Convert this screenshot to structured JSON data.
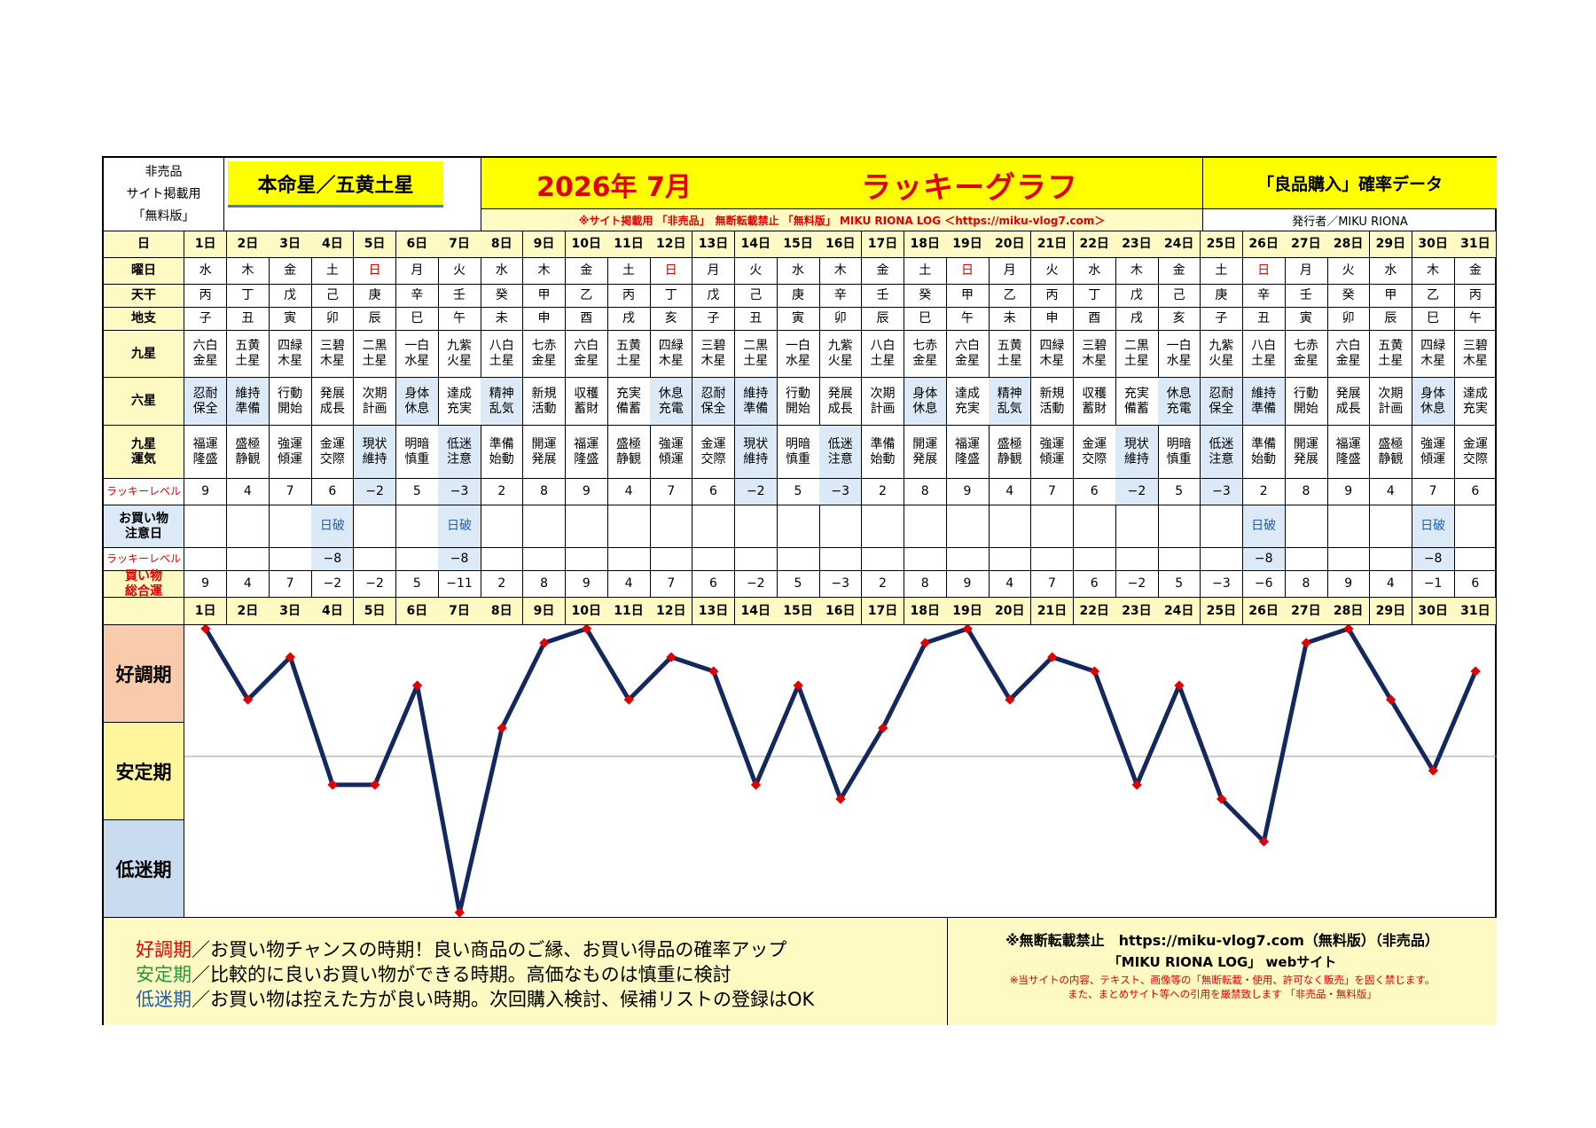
{
  "header": {
    "nonsale_lines": [
      "非売品",
      "サイト掲載用",
      "「無料版」"
    ],
    "honmei_star": "本命星／五黄土星",
    "month_title": "2026年 7月",
    "graph_title": "ラッキーグラフ",
    "data_title": "「良品購入」確率データ",
    "notice": "※サイト掲載用 「非売品」　無断転載禁止 「無料版」 MIKU RIONA LOG ＜https://miku-vlog7.com＞",
    "publisher": "発行者／MIKU RIONA"
  },
  "row_labels": {
    "day": "日",
    "weekday": "曜日",
    "tenkan": "天干",
    "chishi": "地支",
    "kyusei": "九星",
    "rokusei": "六星",
    "kyusei_unki": "九星\n運気",
    "lucky_level": "ラッキーレベル",
    "shopping_caution": "お買い物\n注意日",
    "lucky_level2": "ラッキーレベル",
    "shopping_total": "買い物\n総合運"
  },
  "days": [
    "1日",
    "2日",
    "3日",
    "4日",
    "5日",
    "6日",
    "7日",
    "8日",
    "9日",
    "10日",
    "11日",
    "12日",
    "13日",
    "14日",
    "15日",
    "16日",
    "17日",
    "18日",
    "19日",
    "20日",
    "21日",
    "22日",
    "23日",
    "24日",
    "25日",
    "26日",
    "27日",
    "28日",
    "29日",
    "30日",
    "31日"
  ],
  "weekdays": [
    "水",
    "木",
    "金",
    "土",
    "日",
    "月",
    "火",
    "水",
    "木",
    "金",
    "土",
    "日",
    "月",
    "火",
    "水",
    "木",
    "金",
    "土",
    "日",
    "月",
    "火",
    "水",
    "木",
    "金",
    "土",
    "日",
    "月",
    "火",
    "水",
    "木",
    "金"
  ],
  "tenkan": [
    "丙",
    "丁",
    "戊",
    "己",
    "庚",
    "辛",
    "壬",
    "癸",
    "甲",
    "乙",
    "丙",
    "丁",
    "戊",
    "己",
    "庚",
    "辛",
    "壬",
    "癸",
    "甲",
    "乙",
    "丙",
    "丁",
    "戊",
    "己",
    "庚",
    "辛",
    "壬",
    "癸",
    "甲",
    "乙",
    "丙"
  ],
  "chishi": [
    "子",
    "丑",
    "寅",
    "卯",
    "辰",
    "巳",
    "午",
    "未",
    "申",
    "酉",
    "戌",
    "亥",
    "子",
    "丑",
    "寅",
    "卯",
    "辰",
    "巳",
    "午",
    "未",
    "申",
    "酉",
    "戌",
    "亥",
    "子",
    "丑",
    "寅",
    "卯",
    "辰",
    "巳",
    "午"
  ],
  "kyusei": [
    "六白\n金星",
    "五黄\n土星",
    "四緑\n木星",
    "三碧\n木星",
    "二黒\n土星",
    "一白\n水星",
    "九紫\n火星",
    "八白\n土星",
    "七赤\n金星",
    "六白\n金星",
    "五黄\n土星",
    "四緑\n木星",
    "三碧\n木星",
    "二黒\n土星",
    "一白\n水星",
    "九紫\n火星",
    "八白\n土星",
    "七赤\n金星",
    "六白\n金星",
    "五黄\n土星",
    "四緑\n木星",
    "三碧\n木星",
    "二黒\n土星",
    "一白\n水星",
    "九紫\n火星",
    "八白\n土星",
    "七赤\n金星",
    "六白\n金星",
    "五黄\n土星",
    "四緑\n木星",
    "三碧\n木星"
  ],
  "rokusei": [
    "忍耐\n保全",
    "維持\n準備",
    "行動\n開始",
    "発展\n成長",
    "次期\n計画",
    "身体\n休息",
    "達成\n充実",
    "精神\n乱気",
    "新規\n活動",
    "収穫\n蓄財",
    "充実\n備蓄",
    "休息\n充電",
    "忍耐\n保全",
    "維持\n準備",
    "行動\n開始",
    "発展\n成長",
    "次期\n計画",
    "身体\n休息",
    "達成\n充実",
    "精神\n乱気",
    "新規\n活動",
    "収穫\n蓄財",
    "充実\n備蓄",
    "休息\n充電",
    "忍耐\n保全",
    "維持\n準備",
    "行動\n開始",
    "発展\n成長",
    "次期\n計画",
    "身体\n休息",
    "達成\n充実"
  ],
  "kyusei_unki": [
    "福運\n隆盛",
    "盛極\n静観",
    "強運\n傾運",
    "金運\n交際",
    "現状\n維持",
    "明暗\n慎重",
    "低迷\n注意",
    "準備\n始動",
    "開運\n発展",
    "福運\n隆盛",
    "盛極\n静観",
    "強運\n傾運",
    "金運\n交際",
    "現状\n維持",
    "明暗\n慎重",
    "低迷\n注意",
    "準備\n始動",
    "開運\n発展",
    "福運\n隆盛",
    "盛極\n静観",
    "強運\n傾運",
    "金運\n交際",
    "現状\n維持",
    "明暗\n慎重",
    "低迷\n注意",
    "準備\n始動",
    "開運\n発展",
    "福運\n隆盛",
    "盛極\n静観",
    "強運\n傾運",
    "金運\n交際"
  ],
  "lucky_level": [
    "9",
    "4",
    "7",
    "6",
    "−2",
    "5",
    "−3",
    "2",
    "8",
    "9",
    "4",
    "7",
    "6",
    "−2",
    "5",
    "−3",
    "2",
    "8",
    "9",
    "4",
    "7",
    "6",
    "−2",
    "5",
    "−3",
    "2",
    "8",
    "9",
    "4",
    "7",
    "6"
  ],
  "shopping_caution": [
    "",
    "",
    "",
    "日破",
    "",
    "",
    "日破",
    "",
    "",
    "",
    "",
    "",
    "",
    "",
    "",
    "",
    "",
    "",
    "",
    "",
    "",
    "",
    "",
    "",
    "",
    "日破",
    "",
    "",
    "",
    "日破",
    ""
  ],
  "lucky_level2": [
    "",
    "",
    "",
    "−8",
    "",
    "",
    "−8",
    "",
    "",
    "",
    "",
    "",
    "",
    "",
    "",
    "",
    "",
    "",
    "",
    "",
    "",
    "",
    "",
    "",
    "",
    "−8",
    "",
    "",
    "",
    "−8",
    ""
  ],
  "shopping_total": [
    "9",
    "4",
    "7",
    "−2",
    "−2",
    "5",
    "−11",
    "2",
    "8",
    "9",
    "4",
    "7",
    "6",
    "−2",
    "5",
    "−3",
    "2",
    "8",
    "9",
    "4",
    "7",
    "6",
    "−2",
    "5",
    "−3",
    "−6",
    "8",
    "9",
    "4",
    "−1",
    "6"
  ],
  "zones": {
    "good": "好調期",
    "stable": "安定期",
    "low": "低迷期"
  },
  "legend": {
    "good_label": "好調期",
    "good_text": "／お買い物チャンスの時期！良い商品のご縁、お買い得品の確率アップ",
    "stable_label": "安定期",
    "stable_text": "／比較的に良いお買い物ができる時期。高価なものは慎重に検討",
    "low_label": "低迷期",
    "low_text": "／お買い物は控えた方が良い時期。次回購入検討、候補リストの登録はOK"
  },
  "footer": {
    "line1": "※無断転載禁止　https://miku-vlog7.com（無料版）（非売品）",
    "line2": "「MIKU RIONA LOG」 webサイト",
    "line3": "※当サイトの内容、テキスト、画像等の「無断転載・使用、許可なく販売」を固く禁じます。",
    "line4": "また、まとめサイト等への引用を厳禁致します 「非売品・無料版」"
  },
  "colors": {
    "line": "#13285f",
    "marker": "#e00000",
    "title_red": "#e00000",
    "yellow_fill": "#ffff00",
    "pale_yellow": "#fff9c4",
    "light_blue": "#dce9f7",
    "zone_good": "#f8cbad",
    "zone_stable": "#fff59d",
    "zone_low": "#c9dcef"
  },
  "chart_data": {
    "type": "line",
    "title": "ラッキーグラフ",
    "x": [
      "1日",
      "2日",
      "3日",
      "4日",
      "5日",
      "6日",
      "7日",
      "8日",
      "9日",
      "10日",
      "11日",
      "12日",
      "13日",
      "14日",
      "15日",
      "16日",
      "17日",
      "18日",
      "19日",
      "20日",
      "21日",
      "22日",
      "23日",
      "24日",
      "25日",
      "26日",
      "27日",
      "28日",
      "29日",
      "30日",
      "31日"
    ],
    "series": [
      {
        "values": [
          9,
          4,
          7,
          -2,
          -2,
          5,
          -11,
          2,
          8,
          9,
          4,
          7,
          6,
          -2,
          5,
          -3,
          2,
          8,
          9,
          4,
          7,
          6,
          -2,
          5,
          -3,
          -6,
          8,
          9,
          4,
          -1,
          6
        ]
      }
    ],
    "ylim": [
      -11,
      9
    ],
    "bands": [
      "好調期",
      "安定期",
      "低迷期"
    ],
    "grid": false
  }
}
